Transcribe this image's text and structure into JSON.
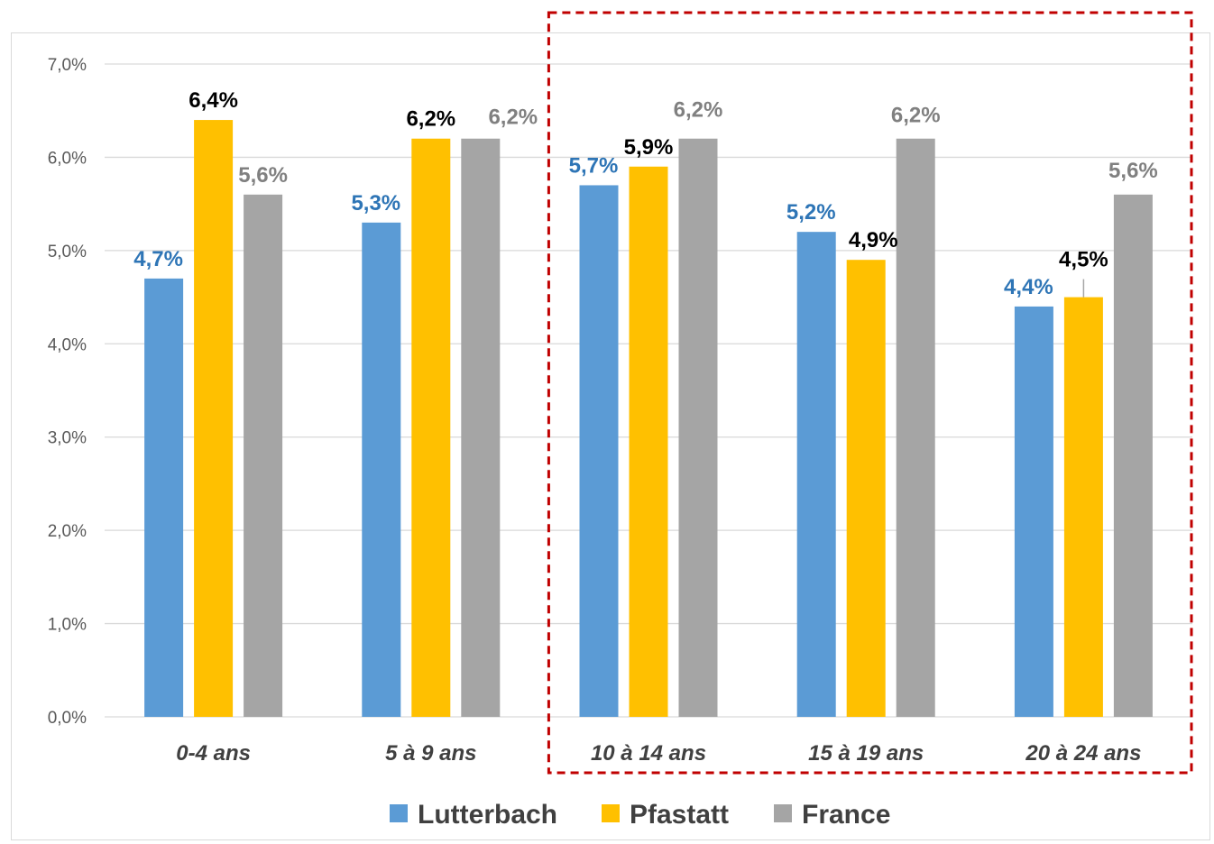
{
  "chart_data": {
    "type": "bar",
    "categories": [
      "0-4 ans",
      "5 à 9 ans",
      "10 à 14 ans",
      "15 à 19 ans",
      "20 à 24 ans"
    ],
    "series": [
      {
        "name": "Lutterbach",
        "color": "#5b9bd5",
        "label_color": "#2e75b6",
        "values": [
          4.7,
          5.3,
          5.7,
          5.2,
          4.4
        ],
        "labels": [
          "4,7%",
          "5,3%",
          "5,7%",
          "5,2%",
          "4,4%"
        ]
      },
      {
        "name": "Pfastatt",
        "color": "#ffc000",
        "label_color": "#000000",
        "values": [
          6.4,
          6.2,
          5.9,
          4.9,
          4.5
        ],
        "labels": [
          "6,4%",
          "6,2%",
          "5,9%",
          "4,9%",
          "4,5%"
        ]
      },
      {
        "name": "France",
        "color": "#a5a5a5",
        "label_color": "#808080",
        "values": [
          5.6,
          6.2,
          6.2,
          6.2,
          5.6
        ],
        "labels": [
          "5,6%",
          "6,2%",
          "6,2%",
          "6,2%",
          "5,6%"
        ]
      }
    ],
    "ylim": [
      0,
      7
    ],
    "y_ticks": [
      0,
      1,
      2,
      3,
      4,
      5,
      6,
      7
    ],
    "y_tick_labels": [
      "0,0%",
      "1,0%",
      "2,0%",
      "3,0%",
      "4,0%",
      "5,0%",
      "6,0%",
      "7,0%"
    ],
    "grid": true,
    "legend_position": "bottom",
    "highlight": {
      "categories": [
        "10 à 14 ans",
        "15 à 19 ans",
        "20 à 24 ans"
      ],
      "color": "#c00000",
      "style": "dashed"
    }
  }
}
